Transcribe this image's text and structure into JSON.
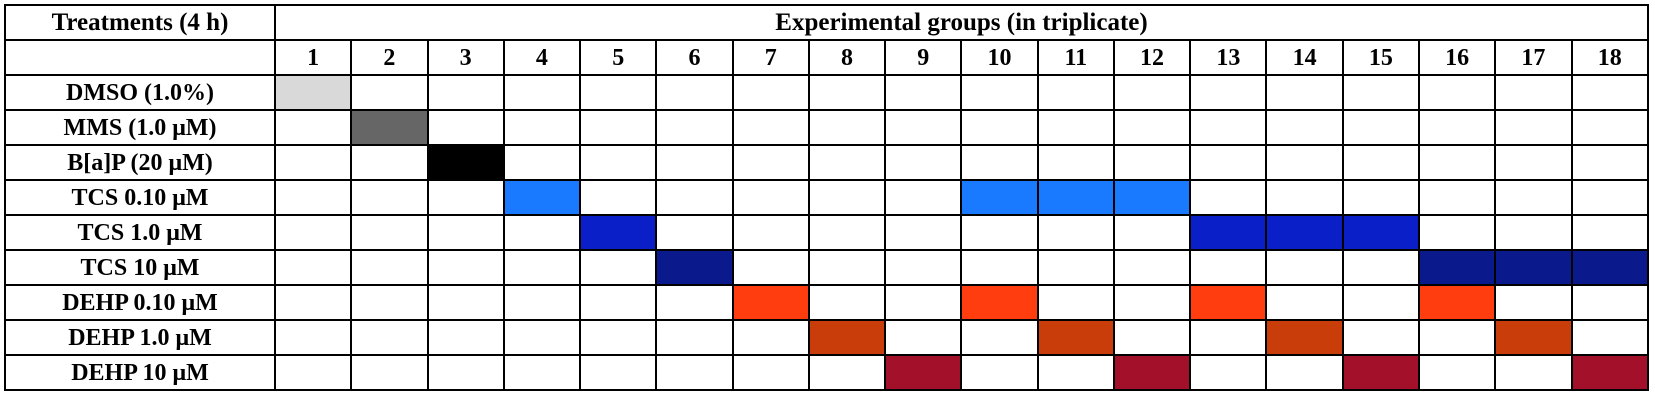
{
  "table": {
    "corner_label": "Treatments (4 h)",
    "groups_title": "Experimental groups (in triplicate)",
    "group_numbers": [
      "1",
      "2",
      "3",
      "4",
      "5",
      "6",
      "7",
      "8",
      "9",
      "10",
      "11",
      "12",
      "13",
      "14",
      "15",
      "16",
      "17",
      "18"
    ],
    "treatments": [
      {
        "label": "DMSO (1.0%)",
        "color": "#d9d9d9",
        "groups": [
          1
        ]
      },
      {
        "label": "MMS (1.0 μM)",
        "color": "#666666",
        "groups": [
          2
        ]
      },
      {
        "label": "B[a]P (20 μM)",
        "color": "#000000",
        "groups": [
          3
        ]
      },
      {
        "label": "TCS 0.10 μM",
        "color": "#1a7aff",
        "groups": [
          4,
          10,
          11,
          12
        ]
      },
      {
        "label": "TCS 1.0 μM",
        "color": "#0a1fc8",
        "groups": [
          5,
          13,
          14,
          15
        ]
      },
      {
        "label": "TCS 10 μM",
        "color": "#0a1a8c",
        "groups": [
          6,
          16,
          17,
          18
        ]
      },
      {
        "label": "DEHP 0.10 μM",
        "color": "#ff3d0f",
        "groups": [
          7,
          10,
          13,
          16
        ]
      },
      {
        "label": "DEHP 1.0 μM",
        "color": "#c93d0a",
        "groups": [
          8,
          11,
          14,
          17
        ]
      },
      {
        "label": "DEHP 10 μM",
        "color": "#a3102a",
        "groups": [
          9,
          12,
          15,
          18
        ]
      }
    ]
  }
}
